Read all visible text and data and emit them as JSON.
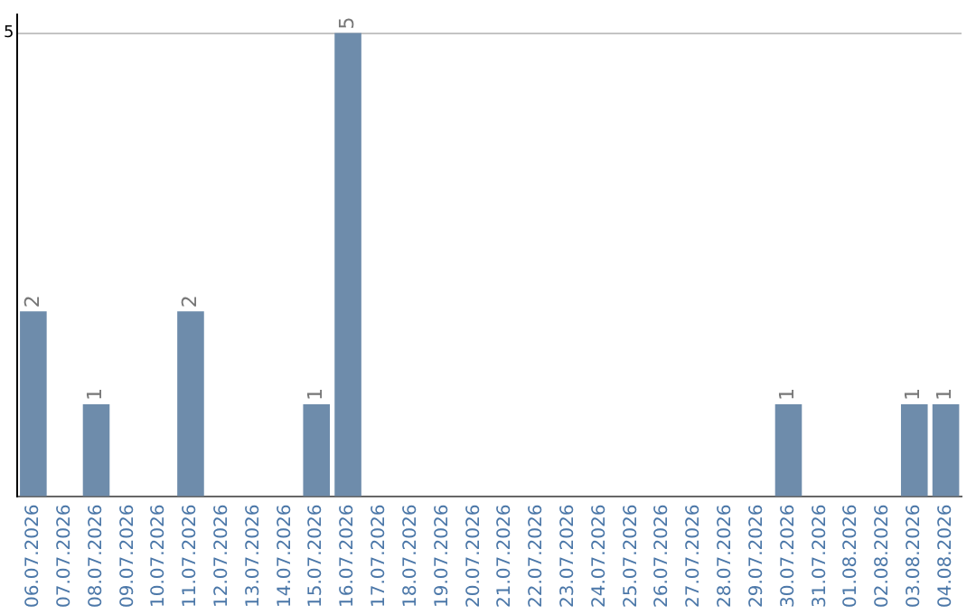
{
  "chart_data": {
    "type": "bar",
    "categories": [
      "06.07.2026",
      "07.07.2026",
      "08.07.2026",
      "09.07.2026",
      "10.07.2026",
      "11.07.2026",
      "12.07.2026",
      "13.07.2026",
      "14.07.2026",
      "15.07.2026",
      "16.07.2026",
      "17.07.2026",
      "18.07.2026",
      "19.07.2026",
      "20.07.2026",
      "21.07.2026",
      "22.07.2026",
      "23.07.2026",
      "24.07.2026",
      "25.07.2026",
      "26.07.2026",
      "27.07.2026",
      "28.07.2026",
      "29.07.2026",
      "30.07.2026",
      "31.07.2026",
      "01.08.2026",
      "02.08.2026",
      "03.08.2026",
      "04.08.2026"
    ],
    "values": [
      2,
      0,
      1,
      0,
      0,
      2,
      0,
      0,
      0,
      1,
      5,
      0,
      0,
      0,
      0,
      0,
      0,
      0,
      0,
      0,
      0,
      0,
      0,
      0,
      1,
      0,
      0,
      0,
      1,
      1
    ],
    "value_labels": [
      "2",
      null,
      "1",
      null,
      null,
      "2",
      null,
      null,
      null,
      "1",
      "5",
      null,
      null,
      null,
      null,
      null,
      null,
      null,
      null,
      null,
      null,
      null,
      null,
      null,
      "1",
      null,
      null,
      null,
      "1",
      "1"
    ],
    "color": "#6e8cab",
    "ylim": [
      0,
      5.2
    ],
    "yticks": [
      {
        "value": 0,
        "label": null
      },
      5
    ],
    "grid": "y",
    "legend": false
  }
}
